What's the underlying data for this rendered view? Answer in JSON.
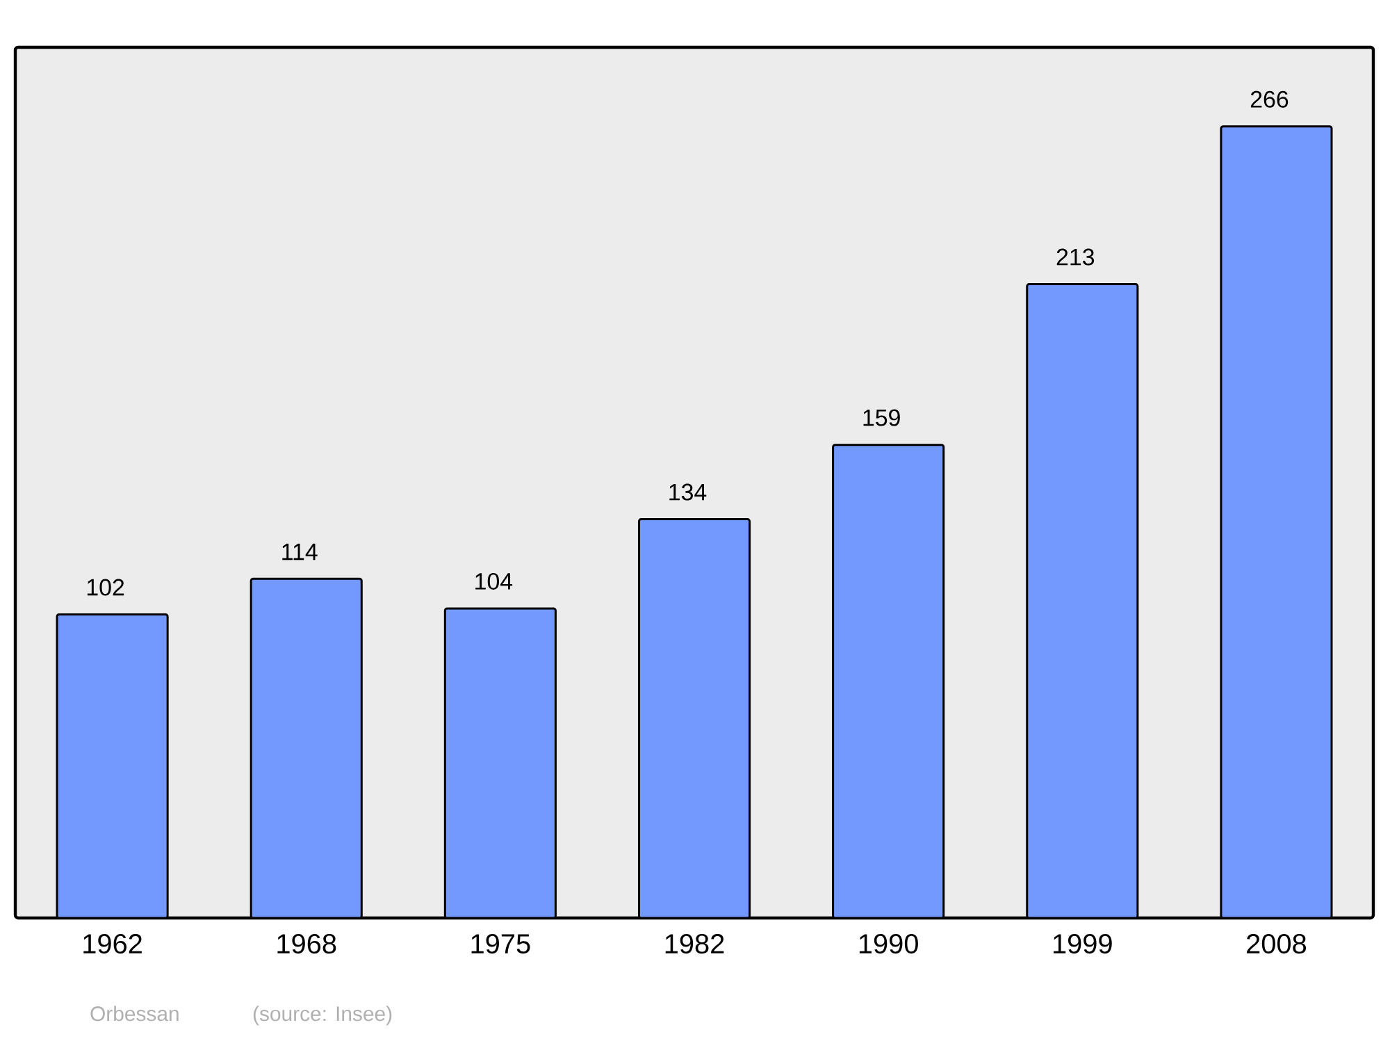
{
  "chart_data": {
    "type": "bar",
    "categories": [
      "1962",
      "1968",
      "1975",
      "1982",
      "1990",
      "1999",
      "2008"
    ],
    "values": [
      102,
      114,
      104,
      134,
      159,
      213,
      266
    ],
    "color": "#7399ff",
    "data_labels": true,
    "annotations": [
      "Orbessan",
      "(source: Insee)"
    ]
  }
}
